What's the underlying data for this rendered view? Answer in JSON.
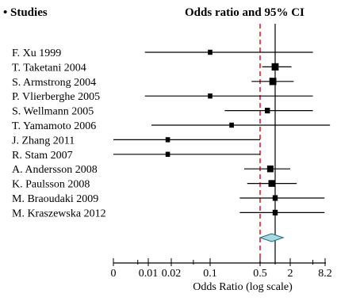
{
  "chart_data": {
    "type": "forest",
    "bullet": "•",
    "header_left": "Studies",
    "header_right": "Odds ratio and 95% CI",
    "xlabel": "Odds Ratio (log scale)",
    "x_scale": "log",
    "x_ticks": [
      {
        "label": "0",
        "value": 0.001
      },
      {
        "label": "0.01",
        "value": 0.01
      },
      {
        "label": "0.02",
        "value": 0.02
      },
      {
        "label": "0.1",
        "value": 0.1
      },
      {
        "label": "0.5",
        "value": 0.5
      },
      {
        "label": "2",
        "value": 2
      },
      {
        "label": "8.2",
        "value": 8.2
      }
    ],
    "x_minor_ticks": [
      0.005,
      0.05,
      1,
      5
    ],
    "reference_line": 1,
    "reference_line_dashed": 0.5,
    "studies": [
      {
        "name": "F. Xu 1999",
        "or": 0.1,
        "ci_low": 0.008,
        "ci_high": 5.0,
        "weight": 1
      },
      {
        "name": "T. Taketani 2004",
        "or": 1.0,
        "ci_low": 0.55,
        "ci_high": 2.1,
        "weight": 3
      },
      {
        "name": "S. Armstrong 2004",
        "or": 0.9,
        "ci_low": 0.38,
        "ci_high": 2.3,
        "weight": 3
      },
      {
        "name": "P. Vlierberghe 2005",
        "or": 0.1,
        "ci_low": 0.008,
        "ci_high": 5.0,
        "weight": 1
      },
      {
        "name": "S. Wellmann 2005",
        "or": 0.7,
        "ci_low": 0.16,
        "ci_high": 5.0,
        "weight": 1.5
      },
      {
        "name": "T. Yamamoto 2006",
        "or": 0.2,
        "ci_low": 0.011,
        "ci_high": 10.0,
        "weight": 1
      },
      {
        "name": "J. Zhang 2011",
        "or": 0.018,
        "ci_low": 0.001,
        "ci_high": 0.5,
        "weight": 1
      },
      {
        "name": "R. Stam 2007",
        "or": 0.018,
        "ci_low": 0.001,
        "ci_high": 0.5,
        "weight": 1
      },
      {
        "name": "A. Andersson 2008",
        "or": 0.8,
        "ci_low": 0.3,
        "ci_high": 2.0,
        "weight": 2.5
      },
      {
        "name": "K. Paulsson 2008",
        "or": 0.85,
        "ci_low": 0.33,
        "ci_high": 2.6,
        "weight": 2.5
      },
      {
        "name": "M. Braoudaki 2009",
        "or": 1.0,
        "ci_low": 0.26,
        "ci_high": 8.0,
        "weight": 1.5
      },
      {
        "name": "M. Kraszewska 2012",
        "or": 1.0,
        "ci_low": 0.26,
        "ci_high": 8.0,
        "weight": 1.5
      }
    ],
    "pooled": {
      "or": 0.85,
      "ci_low": 0.5,
      "ci_high": 1.45
    },
    "colors": {
      "reference_dashed": "#e8202a",
      "diamond_fill": "#a8d8e0",
      "line": "#000000"
    }
  }
}
